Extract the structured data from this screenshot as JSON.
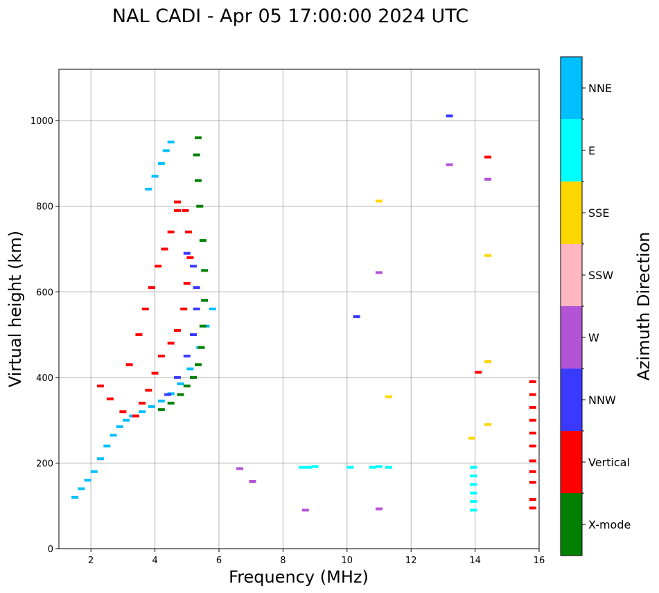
{
  "chart_data": {
    "type": "scatter",
    "title": "NAL CADI - Apr 05 17:00:00 2024 UTC",
    "xlabel": "Frequency (MHz)",
    "ylabel": "Virtual height (km)",
    "xlim": [
      1,
      16
    ],
    "ylim": [
      0,
      1120
    ],
    "xticks": [
      2,
      4,
      6,
      8,
      10,
      12,
      14,
      16
    ],
    "yticks": [
      0,
      200,
      400,
      600,
      800,
      1000
    ],
    "grid": true,
    "colorbar": {
      "label": "Azimuth Direction",
      "categories": [
        {
          "name": "X-mode",
          "color": "#008000"
        },
        {
          "name": "Vertical",
          "color": "#ff0000"
        },
        {
          "name": "NNW",
          "color": "#3a3aff"
        },
        {
          "name": "W",
          "color": "#b354d6"
        },
        {
          "name": "SSW",
          "color": "#ffb6c1"
        },
        {
          "name": "SSE",
          "color": "#ffd700"
        },
        {
          "name": "E",
          "color": "#00ffff"
        },
        {
          "name": "NNE",
          "color": "#00bfff"
        }
      ]
    },
    "traces": [
      {
        "name": "O-trace-low-F2",
        "color": "#00bfff",
        "points": [
          [
            1.5,
            120
          ],
          [
            1.7,
            140
          ],
          [
            1.9,
            160
          ],
          [
            2.1,
            180
          ],
          [
            2.3,
            210
          ],
          [
            2.5,
            240
          ],
          [
            2.7,
            265
          ],
          [
            2.9,
            285
          ],
          [
            3.1,
            300
          ],
          [
            3.3,
            310
          ],
          [
            3.6,
            320
          ],
          [
            3.9,
            332
          ],
          [
            4.2,
            345
          ],
          [
            4.5,
            362
          ],
          [
            4.8,
            385
          ],
          [
            5.1,
            420
          ],
          [
            5.4,
            470
          ],
          [
            5.6,
            520
          ],
          [
            5.8,
            560
          ]
        ]
      },
      {
        "name": "X-trace-low-F2",
        "color": "#008000",
        "points": [
          [
            4.2,
            325
          ],
          [
            4.5,
            340
          ],
          [
            4.8,
            360
          ],
          [
            5.0,
            380
          ],
          [
            5.2,
            400
          ],
          [
            5.35,
            430
          ],
          [
            5.45,
            470
          ],
          [
            5.5,
            520
          ],
          [
            5.55,
            580
          ],
          [
            5.55,
            650
          ],
          [
            5.5,
            720
          ],
          [
            5.4,
            800
          ],
          [
            5.35,
            860
          ],
          [
            5.3,
            920
          ],
          [
            5.35,
            960
          ]
        ]
      },
      {
        "name": "NNW-trace",
        "color": "#3a3aff",
        "points": [
          [
            4.4,
            360
          ],
          [
            4.7,
            400
          ],
          [
            5.0,
            450
          ],
          [
            5.2,
            500
          ],
          [
            5.3,
            560
          ],
          [
            5.3,
            610
          ],
          [
            5.2,
            660
          ],
          [
            5.0,
            690
          ]
        ]
      },
      {
        "name": "Vertical-multihop",
        "color": "#ff0000",
        "points": [
          [
            2.3,
            380
          ],
          [
            2.6,
            350
          ],
          [
            3.0,
            320
          ],
          [
            3.4,
            310
          ],
          [
            3.6,
            340
          ],
          [
            3.8,
            370
          ],
          [
            4.0,
            410
          ],
          [
            4.2,
            450
          ],
          [
            4.5,
            480
          ],
          [
            4.7,
            510
          ],
          [
            4.9,
            560
          ],
          [
            5.0,
            620
          ],
          [
            5.1,
            680
          ],
          [
            5.05,
            740
          ],
          [
            4.95,
            790
          ],
          [
            4.7,
            810
          ]
        ]
      },
      {
        "name": "Vertical-2hop",
        "color": "#ff0000",
        "points": [
          [
            3.2,
            430
          ],
          [
            3.5,
            500
          ],
          [
            3.7,
            560
          ],
          [
            3.9,
            610
          ],
          [
            4.1,
            660
          ],
          [
            4.3,
            700
          ],
          [
            4.5,
            740
          ],
          [
            4.7,
            790
          ]
        ]
      },
      {
        "name": "E-trace-upper",
        "color": "#00bfff",
        "points": [
          [
            3.8,
            840
          ],
          [
            4.0,
            870
          ],
          [
            4.2,
            900
          ],
          [
            4.35,
            930
          ],
          [
            4.5,
            950
          ]
        ]
      },
      {
        "name": "Es-layer-cyan",
        "color": "#00ffff",
        "points": [
          [
            8.6,
            190
          ],
          [
            8.8,
            190
          ],
          [
            9.0,
            192
          ],
          [
            10.1,
            190
          ],
          [
            10.8,
            190
          ],
          [
            11.0,
            192
          ],
          [
            11.3,
            190
          ]
        ]
      },
      {
        "name": "SSE-scatter",
        "color": "#ffd700",
        "points": [
          [
            11.0,
            812
          ],
          [
            11.3,
            355
          ],
          [
            13.9,
            258
          ],
          [
            14.4,
            290
          ],
          [
            14.4,
            437
          ],
          [
            14.4,
            685
          ]
        ]
      },
      {
        "name": "W-scatter",
        "color": "#b354d6",
        "points": [
          [
            13.2,
            897
          ],
          [
            14.4,
            863
          ],
          [
            11.0,
            645
          ],
          [
            8.7,
            90
          ],
          [
            11.0,
            93
          ],
          [
            6.65,
            187
          ],
          [
            7.05,
            157
          ]
        ]
      },
      {
        "name": "NNW-scatter",
        "color": "#3a3aff",
        "points": [
          [
            13.2,
            1011
          ],
          [
            10.3,
            542
          ]
        ]
      },
      {
        "name": "Vertical-14MHz",
        "color": "#ff0000",
        "points": [
          [
            14.1,
            412
          ],
          [
            14.4,
            915
          ]
        ]
      },
      {
        "name": "Column-14MHz",
        "color": "#00ffff",
        "points": [
          [
            13.95,
            90
          ],
          [
            13.95,
            110
          ],
          [
            13.95,
            130
          ],
          [
            13.95,
            150
          ],
          [
            13.95,
            170
          ],
          [
            13.95,
            190
          ]
        ]
      },
      {
        "name": "Column-16MHz",
        "color": "#ff0000",
        "points": [
          [
            15.8,
            95
          ],
          [
            15.8,
            115
          ],
          [
            15.8,
            155
          ],
          [
            15.8,
            180
          ],
          [
            15.8,
            205
          ],
          [
            15.8,
            240
          ],
          [
            15.8,
            270
          ],
          [
            15.8,
            300
          ],
          [
            15.8,
            330
          ],
          [
            15.8,
            360
          ],
          [
            15.8,
            390
          ]
        ]
      }
    ]
  }
}
